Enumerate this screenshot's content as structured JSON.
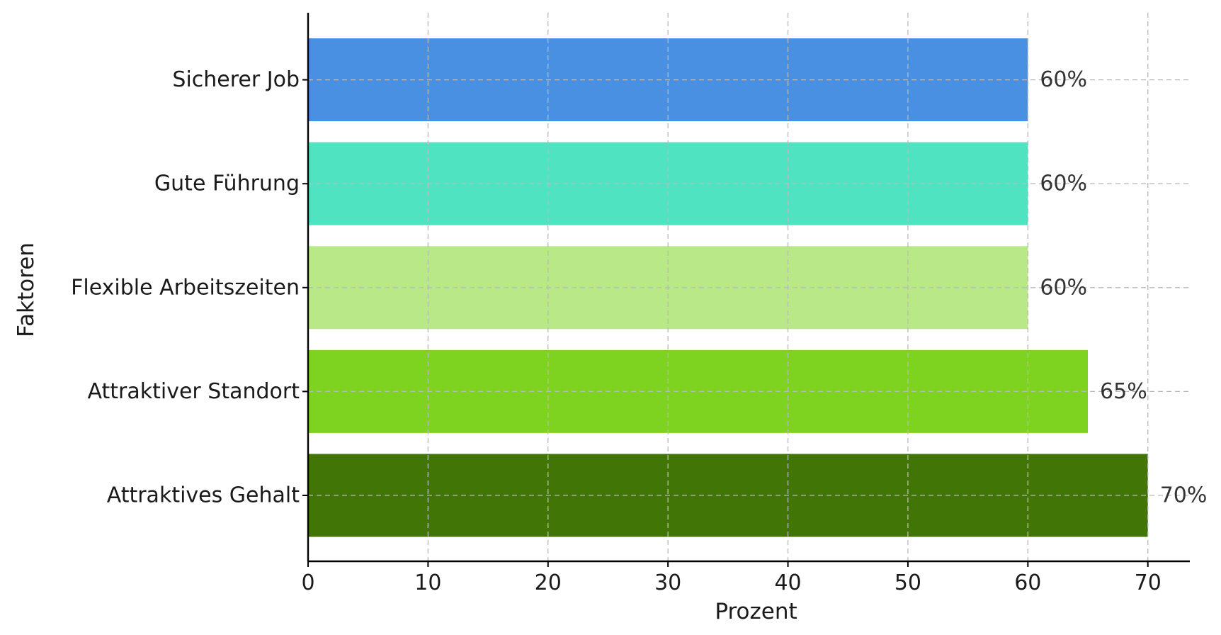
{
  "chart_data": {
    "type": "bar",
    "orientation": "horizontal",
    "categories": [
      "Attraktives Gehalt",
      "Attraktiver Standort",
      "Flexible Arbeitszeiten",
      "Gute Führung",
      "Sicherer Job"
    ],
    "values": [
      70,
      65,
      60,
      60,
      60
    ],
    "data_labels": [
      "70%",
      "65%",
      "60%",
      "60%",
      "60%"
    ],
    "colors": [
      "#417505",
      "#7ED321",
      "#B8E986",
      "#50E3C2",
      "#4A90E2"
    ],
    "xlabel": "Prozent",
    "ylabel": "Faktoren",
    "xlim": [
      0,
      73.5
    ],
    "xticks": [
      0,
      10,
      20,
      30,
      40,
      50,
      60,
      70
    ],
    "grid": true
  }
}
